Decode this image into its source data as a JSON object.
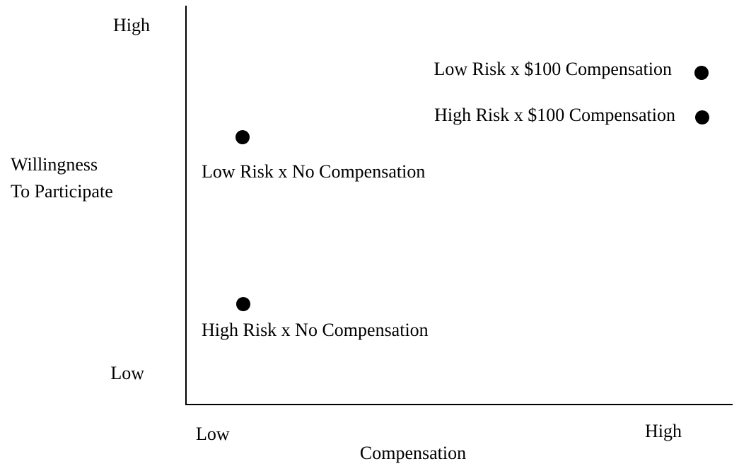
{
  "y_axis": {
    "label": [
      "Willingness",
      "To Participate"
    ],
    "high": "High",
    "low": "Low"
  },
  "x_axis": {
    "label": "Compensation",
    "low": "Low",
    "high": "High"
  },
  "points": [
    {
      "label": "Low Risk x $100 Compensation"
    },
    {
      "label": "High Risk x $100 Compensation"
    },
    {
      "label": "Low Risk x No Compensation"
    },
    {
      "label": "High Risk x No Compensation"
    }
  ]
}
